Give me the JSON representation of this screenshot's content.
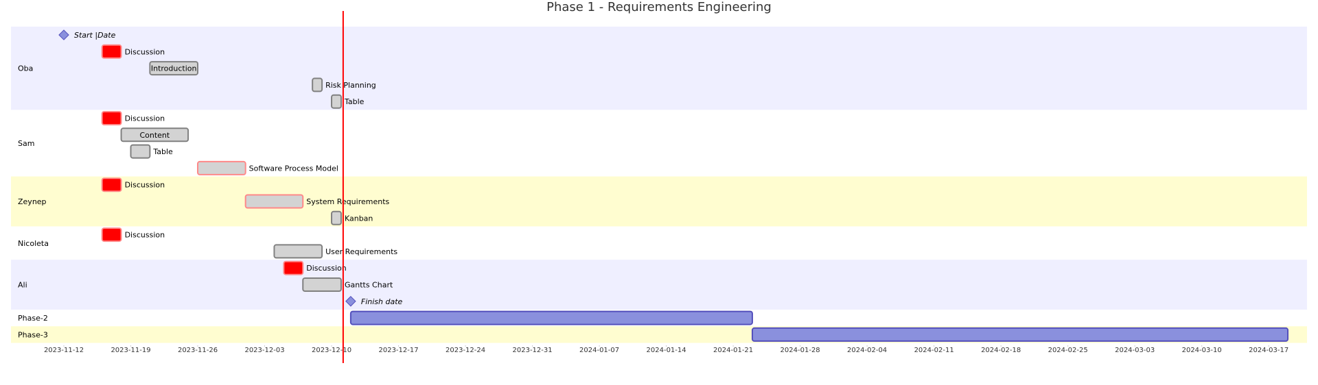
{
  "chart_data": {
    "type": "gantt",
    "title": "Phase 1 - Requirements Engineering",
    "today_marker": "2023-12-12",
    "x_range": [
      "2023-11-08",
      "2024-03-20"
    ],
    "x_ticks": [
      "2023-11-12",
      "2023-11-19",
      "2023-11-26",
      "2023-12-03",
      "2023-12-10",
      "2023-12-17",
      "2023-12-24",
      "2023-12-31",
      "2024-01-07",
      "2024-01-14",
      "2024-01-21",
      "2024-01-28",
      "2024-02-04",
      "2024-02-11",
      "2024-02-18",
      "2024-02-25",
      "2024-03-03",
      "2024-03-10",
      "2024-03-17"
    ],
    "colors": {
      "band_alt_1": "#efefff",
      "band_alt_2": "#fffdd0",
      "task_grey": "#d3d3d3",
      "task_border": "#808080",
      "crit_red": "#ff0000",
      "milestone": "#8a90dd",
      "phase_bar": "#8a90dd",
      "today_line": "#ff0000"
    },
    "sections": [
      {
        "name": "Oba",
        "band": "band_alt_1",
        "tasks": [
          {
            "label": "Start |Date",
            "start": "2023-11-12",
            "end": "2023-11-12",
            "kind": "milestone",
            "label_pos": "right"
          },
          {
            "label": "Discussion",
            "start": "2023-11-16",
            "end": "2023-11-18",
            "kind": "crit",
            "label_pos": "right"
          },
          {
            "label": "Introduction",
            "start": "2023-11-21",
            "end": "2023-11-26",
            "kind": "normal",
            "label_pos": "inside"
          },
          {
            "label": "Risk Planning",
            "start": "2023-12-08",
            "end": "2023-12-09",
            "kind": "normal",
            "label_pos": "right"
          },
          {
            "label": "Table",
            "start": "2023-12-10",
            "end": "2023-12-11",
            "kind": "normal",
            "label_pos": "right"
          }
        ]
      },
      {
        "name": "Sam",
        "band": "none",
        "tasks": [
          {
            "label": "Discussion",
            "start": "2023-11-16",
            "end": "2023-11-18",
            "kind": "crit",
            "label_pos": "right"
          },
          {
            "label": "Content",
            "start": "2023-11-18",
            "end": "2023-11-25",
            "kind": "normal",
            "label_pos": "inside"
          },
          {
            "label": "Table",
            "start": "2023-11-19",
            "end": "2023-11-21",
            "kind": "normal",
            "label_pos": "right"
          },
          {
            "label": "Software Process Model",
            "start": "2023-11-26",
            "end": "2023-12-01",
            "kind": "active",
            "label_pos": "right"
          }
        ]
      },
      {
        "name": "Zeynep",
        "band": "band_alt_2",
        "tasks": [
          {
            "label": "Discussion",
            "start": "2023-11-16",
            "end": "2023-11-18",
            "kind": "crit",
            "label_pos": "right"
          },
          {
            "label": "System Requirements",
            "start": "2023-12-01",
            "end": "2023-12-07",
            "kind": "active",
            "label_pos": "right"
          },
          {
            "label": "Kanban",
            "start": "2023-12-10",
            "end": "2023-12-11",
            "kind": "normal",
            "label_pos": "right"
          }
        ]
      },
      {
        "name": "Nicoleta",
        "band": "none",
        "tasks": [
          {
            "label": "Discussion",
            "start": "2023-11-16",
            "end": "2023-11-18",
            "kind": "crit",
            "label_pos": "right"
          },
          {
            "label": "User Requirements",
            "start": "2023-12-04",
            "end": "2023-12-09",
            "kind": "normal",
            "label_pos": "right"
          }
        ]
      },
      {
        "name": "Ali",
        "band": "band_alt_1",
        "tasks": [
          {
            "label": "Discussion",
            "start": "2023-12-05",
            "end": "2023-12-07",
            "kind": "crit",
            "label_pos": "right"
          },
          {
            "label": "Gantts Chart",
            "start": "2023-12-07",
            "end": "2023-12-11",
            "kind": "normal",
            "label_pos": "right"
          },
          {
            "label": "Finish date",
            "start": "2023-12-12",
            "end": "2023-12-12",
            "kind": "milestone",
            "label_pos": "right"
          }
        ]
      },
      {
        "name": "Phase-2",
        "band": "none",
        "tasks": [
          {
            "label": "",
            "start": "2023-12-12",
            "end": "2024-01-23",
            "kind": "phase",
            "label_pos": "inside"
          }
        ]
      },
      {
        "name": "Phase-3",
        "band": "band_alt_2",
        "tasks": [
          {
            "label": "",
            "start": "2024-01-23",
            "end": "2024-03-19",
            "kind": "phase",
            "label_pos": "inside"
          }
        ]
      }
    ]
  }
}
